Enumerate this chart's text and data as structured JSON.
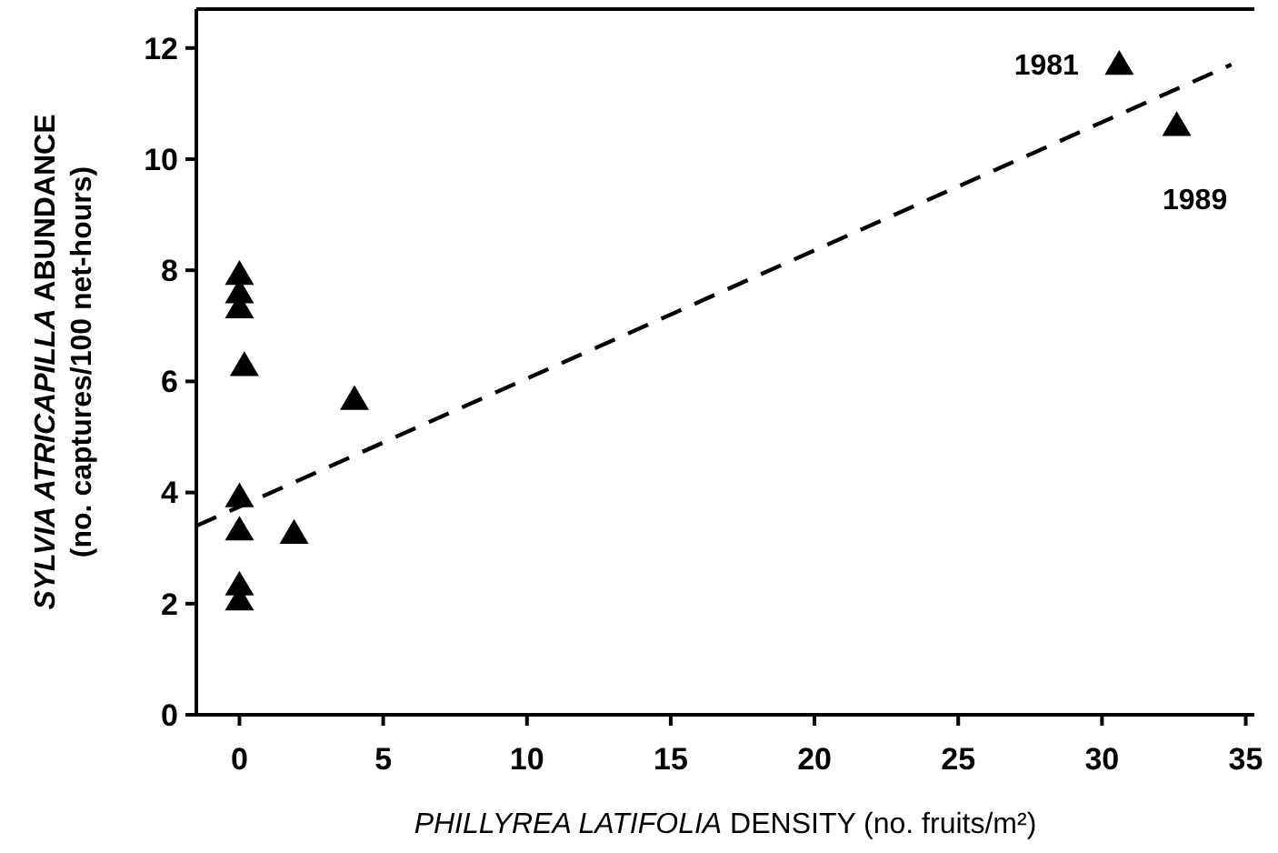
{
  "chart_data": {
    "type": "scatter",
    "xlabel": "PHILLYREA LATIFOLIA DENSITY (no. fruits/m²)",
    "ylabel": "SYLVIA ATRICAPILLA ABUNDANCE\n(no. captures/100 net-hours)",
    "xlim": [
      -1.5,
      35.3
    ],
    "ylim": [
      0,
      12.7
    ],
    "xticks": [
      0,
      5,
      10,
      15,
      20,
      25,
      30,
      35
    ],
    "yticks": [
      0,
      2,
      4,
      6,
      8,
      10,
      12
    ],
    "grid": false,
    "series": [
      {
        "color": "#000000",
        "marker": "triangle",
        "x": [
          0,
          0,
          0,
          0.17,
          4.0,
          0,
          0,
          1.9,
          0,
          0,
          30.6,
          32.6
        ],
        "values": [
          7.92,
          7.59,
          7.32,
          6.28,
          5.67,
          3.92,
          3.32,
          3.26,
          2.33,
          2.06,
          11.7,
          10.6
        ]
      },
      {
        "type": "line",
        "color": "#000000",
        "line_style": "dashed",
        "marker": "none",
        "x": [
          -1.5,
          34.5
        ],
        "values": [
          3.4,
          11.7
        ]
      }
    ],
    "annotations": [
      {
        "text": "1981",
        "x": 30.6,
        "y": 11.7
      },
      {
        "text": "1989",
        "x": 32.6,
        "y": 10.6
      }
    ]
  }
}
